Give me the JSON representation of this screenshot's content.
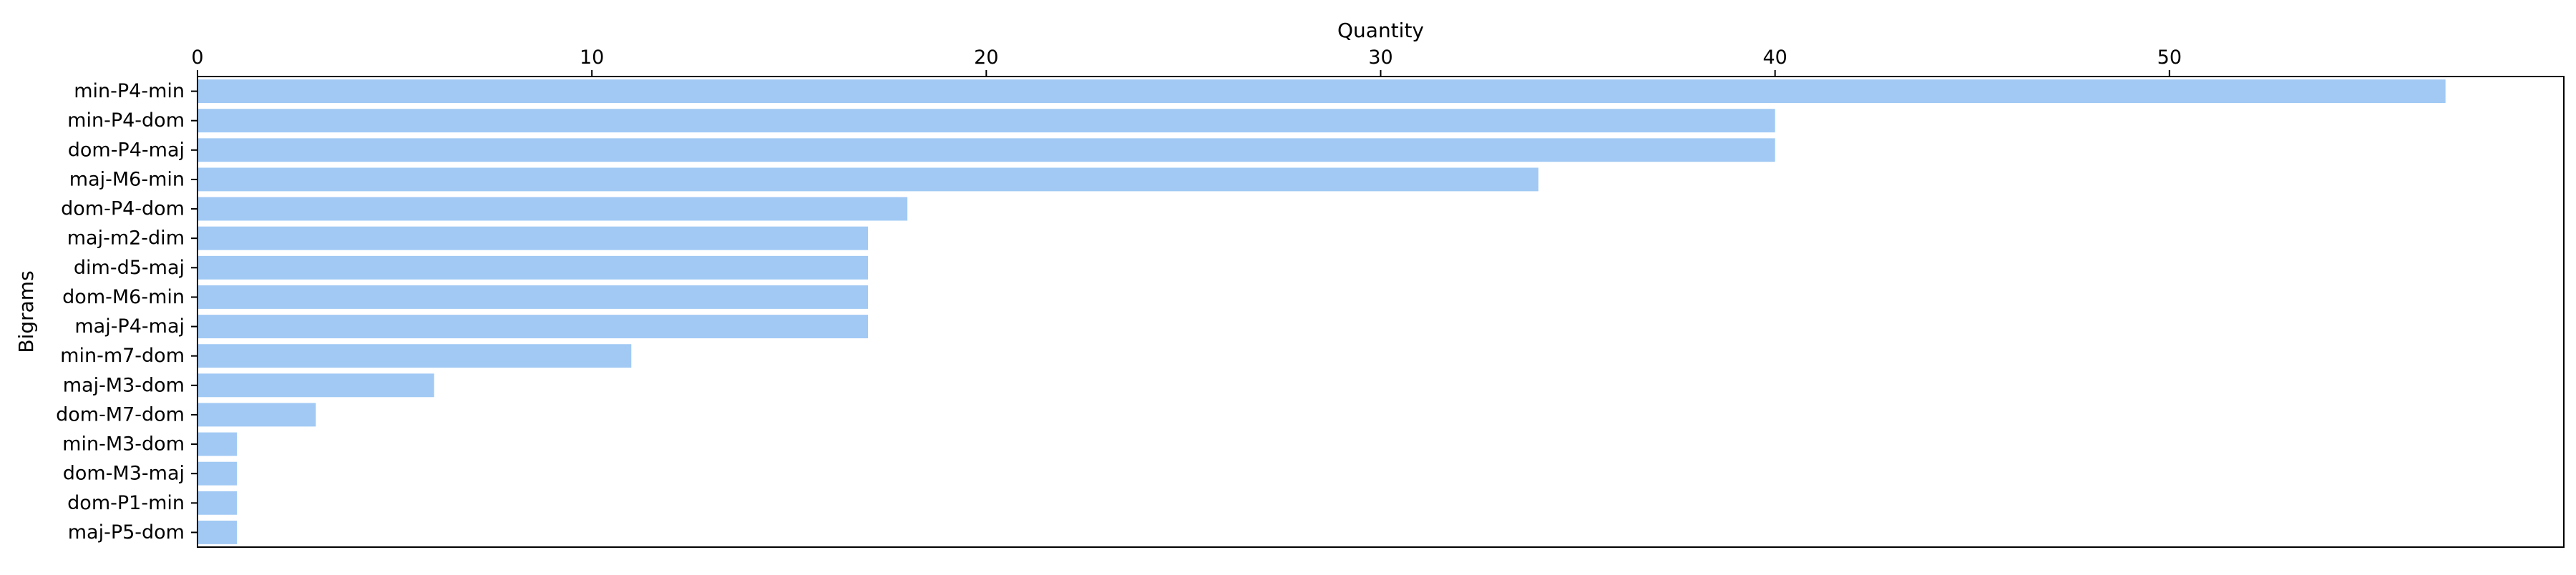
{
  "chart_data": {
    "type": "bar",
    "orientation": "horizontal",
    "title": "",
    "xlabel": "Quantity",
    "ylabel": "Bigrams",
    "x_axis_position": "top",
    "xlim": [
      0,
      60
    ],
    "xticks": [
      0,
      10,
      20,
      30,
      40,
      50
    ],
    "grid": false,
    "legend": false,
    "bar_color": "#a1c9f4",
    "categories": [
      "min-P4-min",
      "min-P4-dom",
      "dom-P4-maj",
      "maj-M6-min",
      "dom-P4-dom",
      "maj-m2-dim",
      "dim-d5-maj",
      "dom-M6-min",
      "maj-P4-maj",
      "min-m7-dom",
      "maj-M3-dom",
      "dom-M7-dom",
      "min-M3-dom",
      "dom-M3-maj",
      "dom-P1-min",
      "maj-P5-dom"
    ],
    "values": [
      57,
      40,
      40,
      34,
      18,
      17,
      17,
      17,
      17,
      11,
      6,
      3,
      1,
      1,
      1,
      1
    ]
  }
}
